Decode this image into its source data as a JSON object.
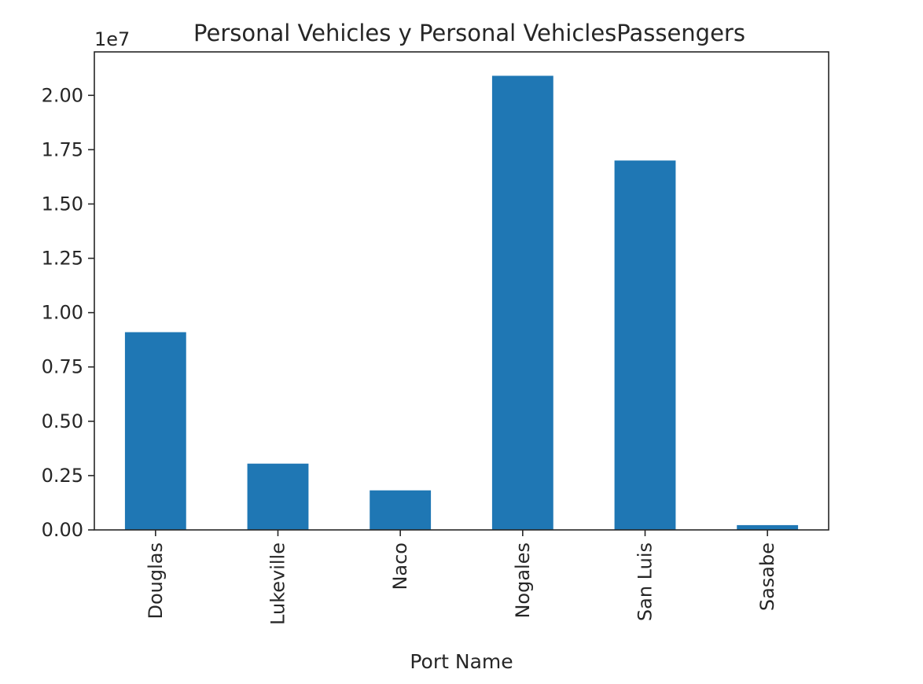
{
  "chart_data": {
    "type": "bar",
    "title": "Personal Vehicles y Personal VehiclesPassengers",
    "xlabel": "Port Name",
    "ylabel": "",
    "offset_label": "1e7",
    "categories": [
      "Douglas",
      "Lukeville",
      "Naco",
      "Nogales",
      "San Luis",
      "Sasabe"
    ],
    "values": [
      9100000,
      3050000,
      1820000,
      20900000,
      17000000,
      220000
    ],
    "ylim": [
      0,
      22000000
    ],
    "yticks": [
      0,
      2500000,
      5000000,
      7500000,
      10000000,
      12500000,
      15000000,
      17500000,
      20000000
    ],
    "ytick_labels": [
      "0.00",
      "0.25",
      "0.50",
      "0.75",
      "1.00",
      "1.25",
      "1.50",
      "1.75",
      "2.00"
    ],
    "bar_color": "#1f77b4",
    "grid": false,
    "legend": "none"
  }
}
